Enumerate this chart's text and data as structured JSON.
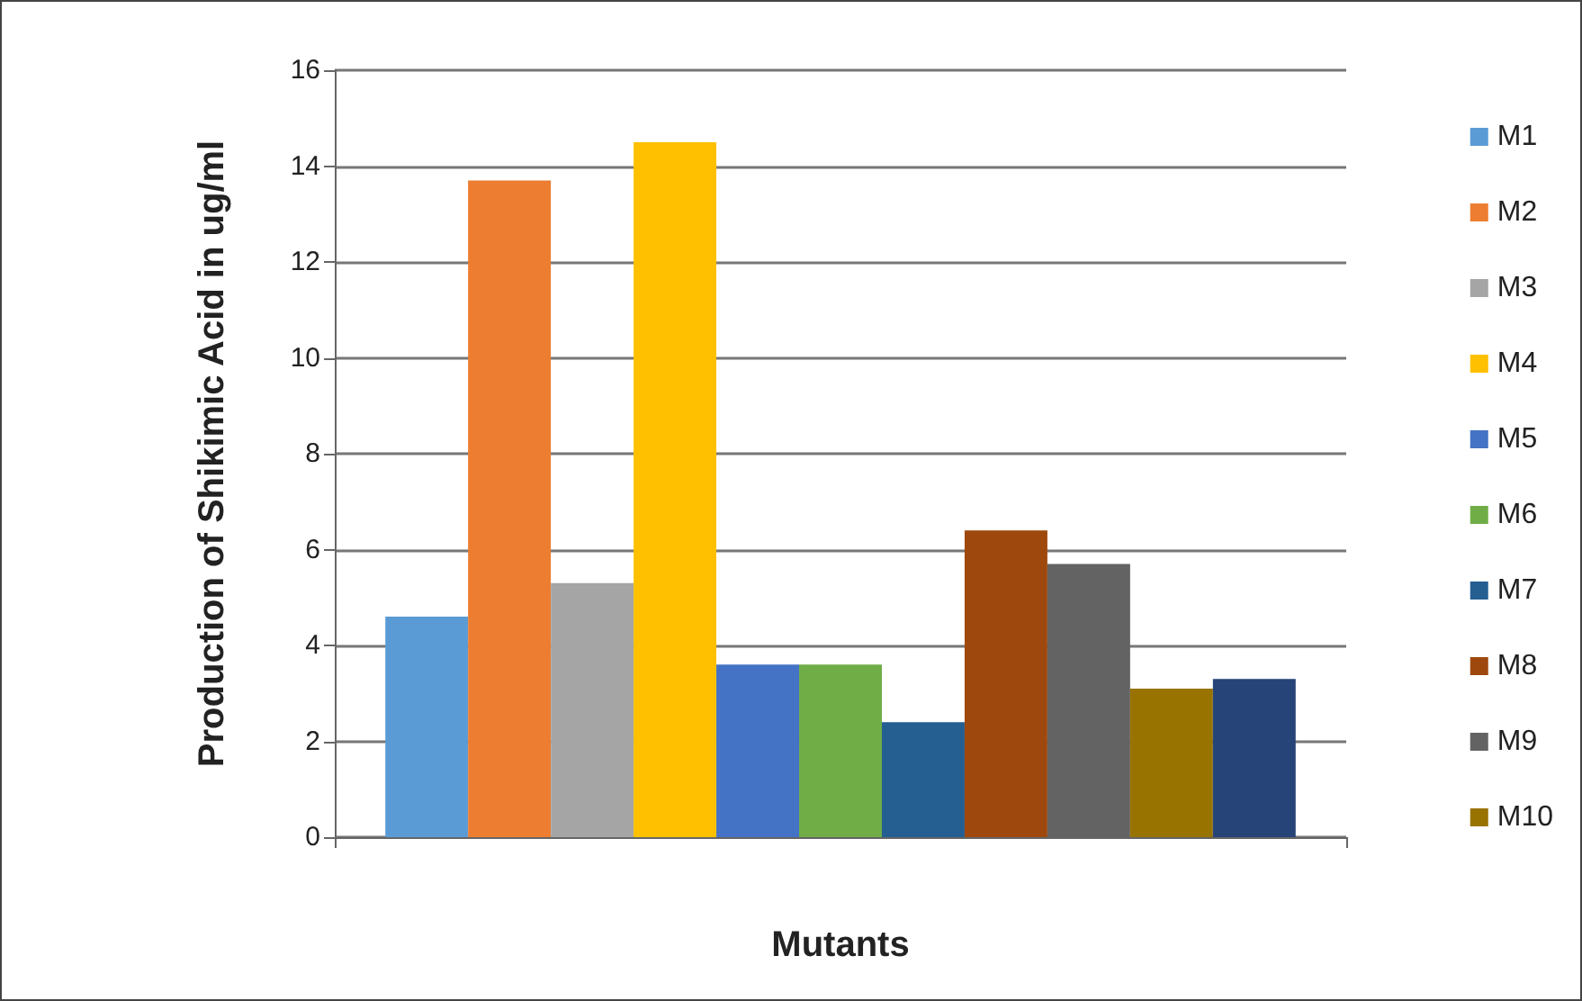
{
  "chart_data": {
    "type": "bar",
    "xlabel": "Mutants",
    "ylabel": "Production of Shikimic Acid in ug/ml",
    "categories": [
      null
    ],
    "ylim": [
      0,
      16
    ],
    "yticks": [
      0,
      2,
      4,
      6,
      8,
      10,
      12,
      14,
      16
    ],
    "grid": "y",
    "legend": "right",
    "series": [
      {
        "name": "M1",
        "color": "#5b9bd5",
        "values": [
          4.6
        ]
      },
      {
        "name": "M2",
        "color": "#ed7d31",
        "values": [
          13.7
        ]
      },
      {
        "name": "M3",
        "color": "#a5a5a5",
        "values": [
          5.3
        ]
      },
      {
        "name": "M4",
        "color": "#ffc000",
        "values": [
          14.5
        ]
      },
      {
        "name": "M5",
        "color": "#4472c4",
        "values": [
          3.6
        ]
      },
      {
        "name": "M6",
        "color": "#70ad47",
        "values": [
          3.6
        ]
      },
      {
        "name": "M7",
        "color": "#255e91",
        "values": [
          2.4
        ]
      },
      {
        "name": "M8",
        "color": "#9e480e",
        "values": [
          6.4
        ]
      },
      {
        "name": "M9",
        "color": "#636363",
        "values": [
          5.7
        ]
      },
      {
        "name": "M10",
        "color": "#997300",
        "values": [
          3.1
        ]
      },
      {
        "color": "#264478",
        "values": [
          3.3
        ]
      }
    ]
  }
}
